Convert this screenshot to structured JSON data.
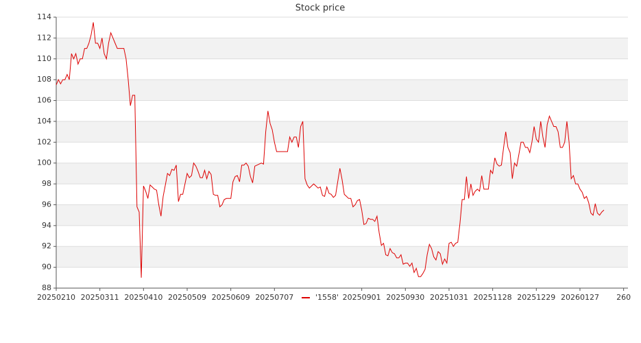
{
  "chart_data": {
    "type": "line",
    "title": "Stock price",
    "series": [
      {
        "name": "'1558'",
        "color": "#dd0000",
        "values": [
          107.5,
          108,
          107.6,
          108,
          108,
          108.5,
          108,
          110.5,
          110,
          110.5,
          109.5,
          110,
          110,
          111,
          111,
          111.5,
          112.3,
          113.5,
          111.5,
          111.5,
          111,
          112,
          110.5,
          110,
          111.5,
          112.5,
          112,
          111.5,
          111,
          111,
          111,
          111,
          110,
          108,
          105.5,
          106.5,
          106.5,
          95.8,
          95.3,
          89,
          97.8,
          97.3,
          96.6,
          97.9,
          97.7,
          97.5,
          97.4,
          96,
          94.9,
          96.8,
          97.9,
          99,
          98.8,
          99.4,
          99.3,
          99.8,
          96.3,
          97,
          97,
          98,
          99,
          98.6,
          98.8,
          100,
          99.7,
          99.2,
          98.6,
          98.6,
          99.3,
          98.5,
          99.2,
          98.9,
          97,
          96.9,
          96.9,
          95.8,
          96,
          96.5,
          96.6,
          96.6,
          96.6,
          98.2,
          98.7,
          98.8,
          98.2,
          99.8,
          99.8,
          100,
          99.7,
          98.7,
          98.1,
          99.7,
          99.8,
          99.9,
          100,
          99.9,
          103,
          105,
          103.8,
          103.2,
          102,
          101.1,
          101.1,
          101.1,
          101.1,
          101.1,
          101.1,
          102.5,
          102,
          102.5,
          102.5,
          101.5,
          103.5,
          104,
          98.5,
          97.9,
          97.6,
          97.8,
          98,
          97.8,
          97.6,
          97.7,
          96.9,
          96.8,
          97.7,
          97.1,
          97,
          96.7,
          96.9,
          98.2,
          99.5,
          98.4,
          97,
          96.8,
          96.6,
          96.6,
          95.8,
          96,
          96.4,
          96.5,
          95.5,
          94.1,
          94.2,
          94.7,
          94.6,
          94.6,
          94.4,
          94.9,
          93.3,
          92.1,
          92.3,
          91.2,
          91.1,
          91.8,
          91.4,
          91.3,
          90.9,
          90.9,
          91.2,
          90.3,
          90.4,
          90.4,
          90.1,
          90.4,
          89.5,
          89.9,
          89.1,
          89.1,
          89.4,
          89.8,
          91.2,
          92.2,
          91.8,
          91,
          90.7,
          91.5,
          91.3,
          90.3,
          90.8,
          90.4,
          92.3,
          92.4,
          92,
          92.3,
          92.4,
          94.2,
          96.5,
          96.5,
          98.7,
          96.6,
          98,
          96.9,
          97.3,
          97.5,
          97.3,
          98.8,
          97.5,
          97.5,
          97.5,
          99.3,
          99,
          100.5,
          99.9,
          99.7,
          99.8,
          101.5,
          103,
          101.5,
          101,
          98.5,
          100,
          99.7,
          100.8,
          102,
          102,
          101.5,
          101.5,
          101,
          102,
          103.5,
          102.3,
          102,
          104,
          102.5,
          101.5,
          103.7,
          104.5,
          104,
          103.5,
          103.5,
          103,
          101.5,
          101.5,
          102,
          104,
          102,
          98.5,
          98.8,
          98,
          98,
          97.5,
          97.2,
          96.6,
          96.8,
          96.2,
          95.2,
          95,
          96.1,
          95.2,
          95,
          95.3,
          95.5
        ]
      }
    ],
    "xlim": [
      0,
      262
    ],
    "xticks": [
      {
        "value": 0,
        "label": "20250210"
      },
      {
        "value": 20,
        "label": "20250311"
      },
      {
        "value": 40,
        "label": "20250410"
      },
      {
        "value": 60,
        "label": "20250509"
      },
      {
        "value": 80,
        "label": "20250609"
      },
      {
        "value": 100,
        "label": "20250707"
      },
      {
        "value": 140,
        "label": "20250901"
      },
      {
        "value": 160,
        "label": "20250930"
      },
      {
        "value": 180,
        "label": "20251031"
      },
      {
        "value": 200,
        "label": "20251128"
      },
      {
        "value": 220,
        "label": "20251229"
      },
      {
        "value": 240,
        "label": "20260127"
      },
      {
        "value": 260,
        "label": "260"
      }
    ],
    "ylim": [
      88,
      114
    ],
    "yticks": [
      88,
      90,
      92,
      94,
      96,
      98,
      100,
      102,
      104,
      106,
      108,
      110,
      112,
      114
    ],
    "grid": true
  }
}
